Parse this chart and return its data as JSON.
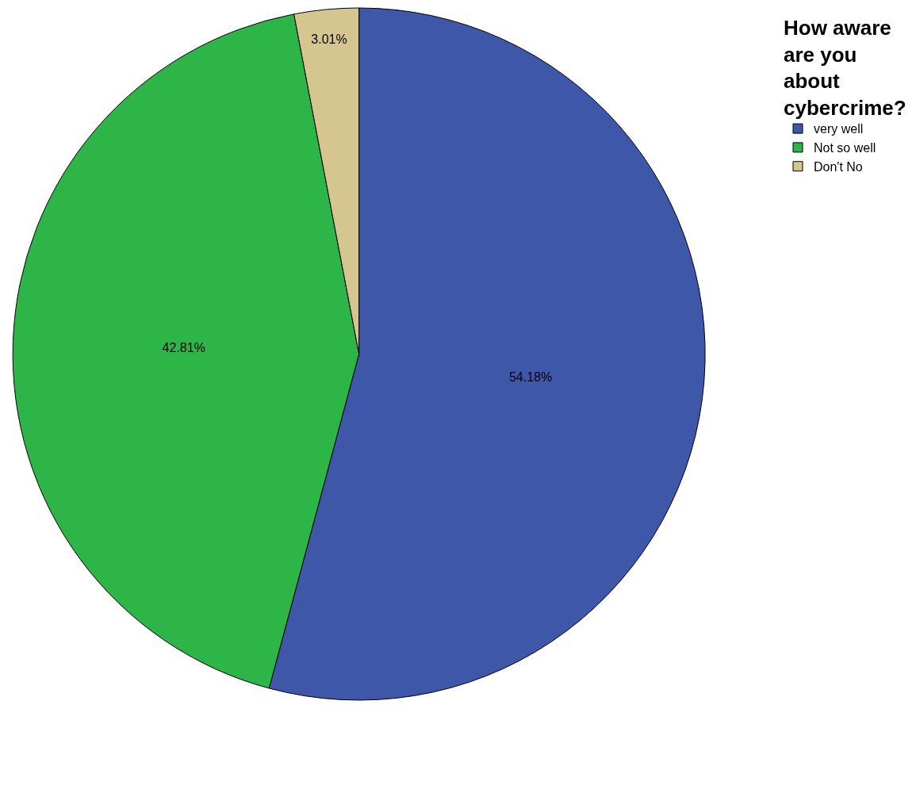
{
  "chart_data": {
    "type": "pie",
    "legend_title": "How aware are you about cybercrime?",
    "categories": [
      "very well",
      "Not so well",
      "Don't No"
    ],
    "values": [
      54.18,
      42.81,
      3.01
    ],
    "value_labels": [
      "54.18%",
      "42.81%",
      "3.01%"
    ],
    "colors": [
      "#3f57a9",
      "#2db548",
      "#d5c690"
    ],
    "legend": "top right"
  }
}
